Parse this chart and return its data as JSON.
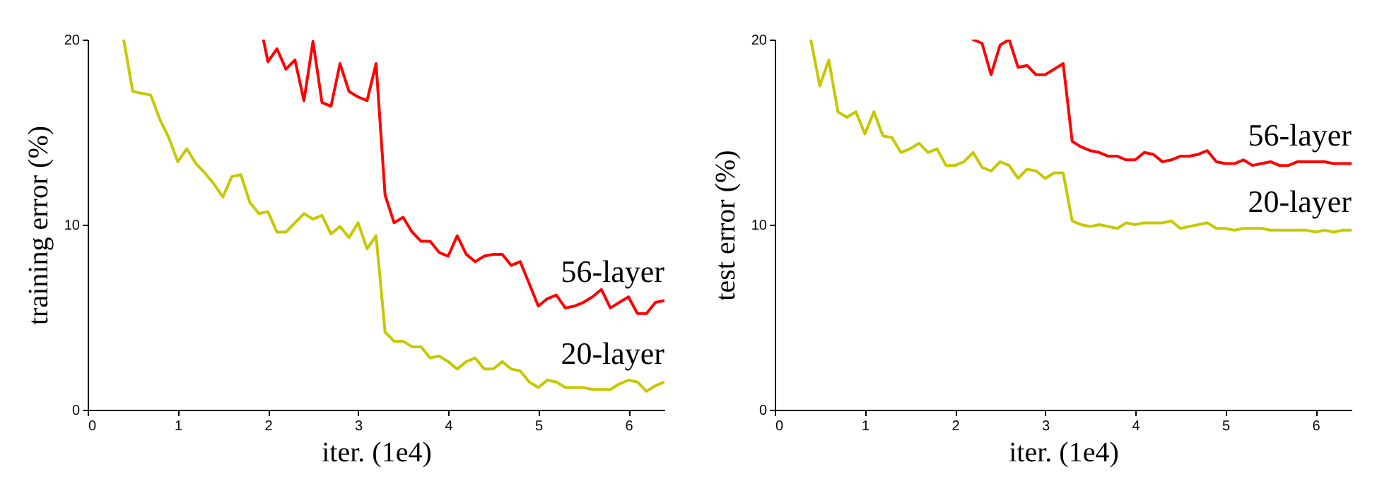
{
  "chart_data": [
    {
      "type": "line",
      "xlabel": "iter. (1e4)",
      "ylabel": "training error (%)",
      "xlim": [
        0,
        6.4
      ],
      "xticks": [
        0,
        1,
        2,
        3,
        4,
        5,
        6
      ],
      "ylim": [
        0,
        20
      ],
      "yticks": [
        0,
        10,
        20
      ],
      "grid": false,
      "series": [
        {
          "name": "56-layer",
          "color": "#ff0000",
          "x": [
            1.95,
            2.0,
            2.1,
            2.2,
            2.3,
            2.4,
            2.5,
            2.6,
            2.7,
            2.8,
            2.9,
            3.0,
            3.1,
            3.2,
            3.3,
            3.4,
            3.5,
            3.6,
            3.7,
            3.8,
            3.9,
            4.0,
            4.1,
            4.2,
            4.3,
            4.4,
            4.5,
            4.6,
            4.7,
            4.8,
            4.9,
            5.0,
            5.1,
            5.2,
            5.3,
            5.4,
            5.5,
            5.6,
            5.7,
            5.8,
            5.9,
            6.0,
            6.1,
            6.2,
            6.3,
            6.4
          ],
          "values": [
            20.0,
            18.8,
            19.5,
            18.4,
            18.9,
            16.7,
            19.9,
            16.6,
            16.4,
            18.7,
            17.2,
            16.9,
            16.7,
            18.7,
            11.6,
            10.1,
            10.4,
            9.6,
            9.1,
            9.1,
            8.5,
            8.3,
            9.4,
            8.4,
            8.0,
            8.3,
            8.4,
            8.4,
            7.8,
            8.0,
            6.8,
            5.6,
            6.0,
            6.2,
            5.5,
            5.6,
            5.8,
            6.1,
            6.5,
            5.5,
            5.8,
            6.1,
            5.2,
            5.2,
            5.8,
            5.9
          ]
        },
        {
          "name": "20-layer",
          "color": "#c8c800",
          "x": [
            0.4,
            0.5,
            0.6,
            0.7,
            0.8,
            0.9,
            1.0,
            1.1,
            1.2,
            1.3,
            1.4,
            1.5,
            1.6,
            1.7,
            1.8,
            1.9,
            2.0,
            2.1,
            2.2,
            2.3,
            2.4,
            2.5,
            2.6,
            2.7,
            2.8,
            2.9,
            3.0,
            3.1,
            3.2,
            3.3,
            3.4,
            3.5,
            3.6,
            3.7,
            3.8,
            3.9,
            4.0,
            4.1,
            4.2,
            4.3,
            4.4,
            4.5,
            4.6,
            4.7,
            4.8,
            4.9,
            5.0,
            5.1,
            5.2,
            5.3,
            5.4,
            5.5,
            5.6,
            5.7,
            5.8,
            5.9,
            6.0,
            6.1,
            6.2,
            6.3,
            6.4
          ],
          "values": [
            20.0,
            17.2,
            17.1,
            17.0,
            15.7,
            14.7,
            13.4,
            14.1,
            13.3,
            12.8,
            12.2,
            11.5,
            12.6,
            12.7,
            11.2,
            10.6,
            10.7,
            9.6,
            9.6,
            10.1,
            10.6,
            10.3,
            10.5,
            9.5,
            9.9,
            9.3,
            10.1,
            8.7,
            9.4,
            4.2,
            3.7,
            3.7,
            3.4,
            3.4,
            2.8,
            2.9,
            2.6,
            2.2,
            2.6,
            2.8,
            2.2,
            2.2,
            2.6,
            2.2,
            2.1,
            1.5,
            1.2,
            1.6,
            1.5,
            1.2,
            1.2,
            1.2,
            1.1,
            1.1,
            1.1,
            1.4,
            1.6,
            1.5,
            1.0,
            1.3,
            1.5
          ]
        }
      ]
    },
    {
      "type": "line",
      "xlabel": "iter. (1e4)",
      "ylabel": "test error (%)",
      "xlim": [
        0,
        6.4
      ],
      "xticks": [
        0,
        1,
        2,
        3,
        4,
        5,
        6
      ],
      "ylim": [
        0,
        20
      ],
      "yticks": [
        0,
        10,
        20
      ],
      "grid": false,
      "series": [
        {
          "name": "56-layer",
          "color": "#ff0000",
          "x": [
            2.2,
            2.3,
            2.4,
            2.5,
            2.6,
            2.7,
            2.8,
            2.9,
            3.0,
            3.1,
            3.2,
            3.3,
            3.4,
            3.5,
            3.6,
            3.7,
            3.8,
            3.9,
            4.0,
            4.1,
            4.2,
            4.3,
            4.4,
            4.5,
            4.6,
            4.7,
            4.8,
            4.9,
            5.0,
            5.1,
            5.2,
            5.3,
            5.4,
            5.5,
            5.6,
            5.7,
            5.8,
            5.9,
            6.0,
            6.1,
            6.2,
            6.3,
            6.4
          ],
          "values": [
            20.0,
            19.8,
            18.1,
            19.7,
            20.0,
            18.5,
            18.6,
            18.1,
            18.1,
            18.4,
            18.7,
            14.5,
            14.2,
            14.0,
            13.9,
            13.7,
            13.7,
            13.5,
            13.5,
            13.9,
            13.8,
            13.4,
            13.5,
            13.7,
            13.7,
            13.8,
            14.0,
            13.4,
            13.3,
            13.3,
            13.5,
            13.2,
            13.3,
            13.4,
            13.2,
            13.2,
            13.4,
            13.4,
            13.4,
            13.4,
            13.3,
            13.3,
            13.3
          ]
        },
        {
          "name": "20-layer",
          "color": "#c8c800",
          "x": [
            0.4,
            0.5,
            0.6,
            0.7,
            0.8,
            0.9,
            1.0,
            1.1,
            1.2,
            1.3,
            1.4,
            1.5,
            1.6,
            1.7,
            1.8,
            1.9,
            2.0,
            2.1,
            2.2,
            2.3,
            2.4,
            2.5,
            2.6,
            2.7,
            2.8,
            2.9,
            3.0,
            3.1,
            3.2,
            3.3,
            3.4,
            3.5,
            3.6,
            3.7,
            3.8,
            3.9,
            4.0,
            4.1,
            4.2,
            4.3,
            4.4,
            4.5,
            4.6,
            4.7,
            4.8,
            4.9,
            5.0,
            5.1,
            5.2,
            5.3,
            5.4,
            5.5,
            5.6,
            5.7,
            5.8,
            5.9,
            6.0,
            6.1,
            6.2,
            6.3,
            6.4
          ],
          "values": [
            20.0,
            17.5,
            18.9,
            16.1,
            15.8,
            16.1,
            14.9,
            16.1,
            14.8,
            14.7,
            13.9,
            14.1,
            14.4,
            13.9,
            14.1,
            13.2,
            13.2,
            13.4,
            13.9,
            13.1,
            12.9,
            13.4,
            13.2,
            12.5,
            13.0,
            12.9,
            12.5,
            12.8,
            12.8,
            10.2,
            10.0,
            9.9,
            10.0,
            9.9,
            9.8,
            10.1,
            10.0,
            10.1,
            10.1,
            10.1,
            10.2,
            9.8,
            9.9,
            10.0,
            10.1,
            9.8,
            9.8,
            9.7,
            9.8,
            9.8,
            9.8,
            9.7,
            9.7,
            9.7,
            9.7,
            9.7,
            9.6,
            9.7,
            9.6,
            9.7,
            9.7
          ]
        }
      ]
    }
  ]
}
